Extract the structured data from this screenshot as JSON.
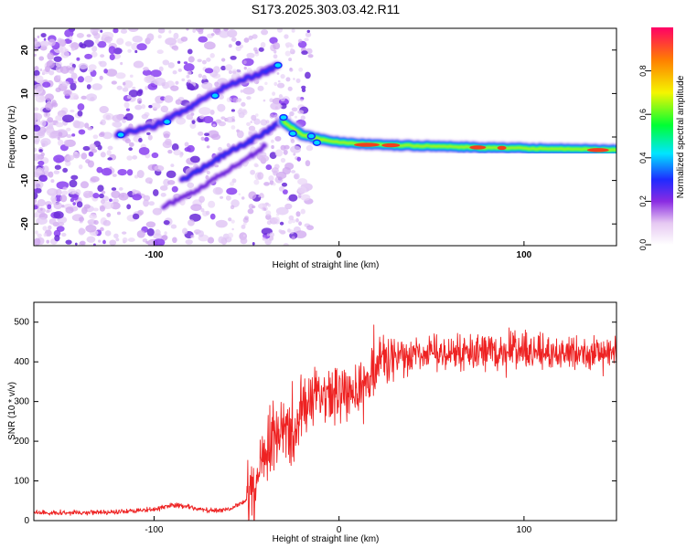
{
  "title": "S173.2025.303.03.42.R11",
  "chart_data": [
    {
      "type": "heatmap",
      "xlabel": "Height of straight line (km)",
      "ylabel": "Frequency (Hz)",
      "xlim": [
        -165,
        150
      ],
      "ylim": [
        -25,
        25
      ],
      "xticks": [
        -100,
        0,
        100
      ],
      "yticks": [
        -20,
        -10,
        0,
        10,
        20
      ],
      "colorbar": {
        "label": "Normalized spectral amplitude",
        "range": [
          0,
          1
        ],
        "ticks": [
          "0.0",
          "0.2",
          "0.4",
          "0.6",
          "0.8"
        ],
        "tick_values": [
          0.0,
          0.2,
          0.4,
          0.6,
          0.8
        ]
      },
      "features": [
        {
          "name": "main-ridge",
          "x": [
            -30,
            -20,
            -10,
            0,
            20,
            40,
            60,
            80,
            100,
            120,
            150
          ],
          "freq": [
            3.5,
            0.5,
            -0.5,
            -1.2,
            -1.8,
            -2.0,
            -2.2,
            -2.5,
            -2.6,
            -2.8,
            -3.0
          ]
        },
        {
          "name": "upper-branch",
          "x": [
            -120,
            -100,
            -80,
            -60,
            -40,
            -33
          ],
          "freq": [
            0.5,
            2.5,
            7.0,
            12.0,
            15.0,
            16.5
          ]
        },
        {
          "name": "lower-branch-1",
          "x": [
            -85,
            -70,
            -55,
            -40,
            -30
          ],
          "freq": [
            -10.0,
            -6.0,
            -2.5,
            1.0,
            4.0
          ]
        },
        {
          "name": "lower-branch-2",
          "x": [
            -95,
            -80,
            -65,
            -50,
            -40
          ],
          "freq": [
            -16.0,
            -13.0,
            -9.0,
            -5.0,
            -2.0
          ]
        }
      ]
    },
    {
      "type": "line",
      "xlabel": "Height of straight line (km)",
      "ylabel": "SNR (10 * v/v)",
      "xlim": [
        -165,
        150
      ],
      "ylim": [
        0,
        550
      ],
      "xticks": [
        -100,
        0,
        100
      ],
      "yticks": [
        0,
        100,
        200,
        300,
        400,
        500
      ],
      "color": "#ee2222",
      "series": [
        {
          "name": "SNR",
          "x": [
            -165,
            -140,
            -120,
            -100,
            -90,
            -80,
            -70,
            -60,
            -50,
            -45,
            -40,
            -35,
            -30,
            -25,
            -20,
            -15,
            -10,
            -5,
            0,
            5,
            10,
            15,
            20,
            25,
            30,
            40,
            50,
            60,
            70,
            80,
            90,
            100,
            110,
            120,
            130,
            140,
            150
          ],
          "y": [
            20,
            20,
            22,
            28,
            40,
            33,
            25,
            28,
            50,
            90,
            150,
            220,
            250,
            200,
            270,
            300,
            310,
            300,
            330,
            340,
            330,
            360,
            390,
            400,
            410,
            415,
            420,
            420,
            425,
            422,
            425,
            425,
            428,
            420,
            425,
            420,
            420
          ]
        }
      ]
    }
  ]
}
